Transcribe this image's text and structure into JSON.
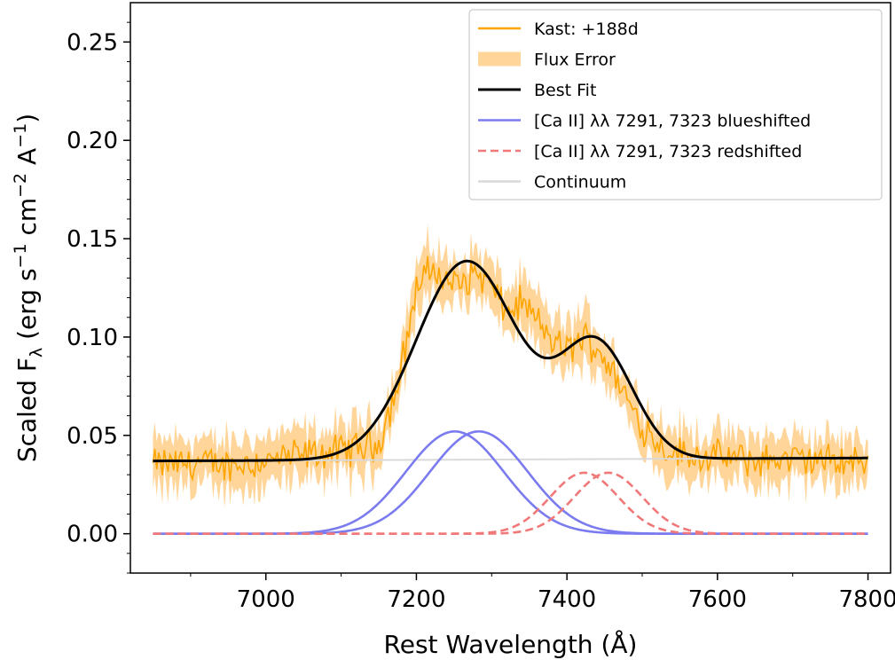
{
  "chart_data": {
    "type": "line",
    "xlabel": "Rest Wavelength (Å)",
    "ylabel_parts": [
      "Scaled F",
      "λ",
      " (erg s",
      "−1",
      " cm",
      "−2",
      " A",
      "−1",
      ")"
    ],
    "xlim": [
      6820,
      7830
    ],
    "ylim": [
      -0.02,
      0.27
    ],
    "xticks": [
      7000,
      7200,
      7400,
      7600,
      7800
    ],
    "xtick_labels": [
      "7000",
      "7200",
      "7400",
      "7600",
      "7800"
    ],
    "yticks": [
      0.0,
      0.05,
      0.1,
      0.15,
      0.2,
      0.25
    ],
    "ytick_labels": [
      "0.00",
      "0.05",
      "0.10",
      "0.15",
      "0.20",
      "0.25"
    ],
    "legend_position": "top-right",
    "legend": [
      {
        "key": "kast",
        "label": "Kast: +188d",
        "style": "line",
        "color": "#FFA500"
      },
      {
        "key": "err",
        "label": "Flux Error",
        "style": "patch",
        "color": "#FFD59A"
      },
      {
        "key": "fit",
        "label": "Best Fit",
        "style": "line",
        "color": "#000000"
      },
      {
        "key": "blue",
        "label": "[Ca II] λλ 7291, 7323 blueshifted",
        "style": "line",
        "color": "#7B7BF0"
      },
      {
        "key": "red",
        "label": "[Ca II] λλ 7291, 7323 redshifted",
        "style": "dashed",
        "color": "#F07878"
      },
      {
        "key": "cont",
        "label": "Continuum",
        "style": "line",
        "color": "#D9D9D9"
      }
    ],
    "data_range": [
      6850,
      7800
    ],
    "components": {
      "continuum": {
        "start": 0.037,
        "end": 0.0385
      },
      "blueshifted_gaussians": [
        {
          "center": 7251,
          "amplitude": 0.052,
          "sigma": 65
        },
        {
          "center": 7283,
          "amplitude": 0.052,
          "sigma": 65
        }
      ],
      "redshifted_gaussians": [
        {
          "center": 7423,
          "amplitude": 0.031,
          "sigma": 45
        },
        {
          "center": 7455,
          "amplitude": 0.031,
          "sigma": 45
        }
      ]
    },
    "observed_spectrum_shape": {
      "x": [
        6850,
        6900,
        6950,
        7000,
        7050,
        7100,
        7150,
        7175,
        7200,
        7220,
        7240,
        7260,
        7280,
        7300,
        7320,
        7340,
        7360,
        7380,
        7400,
        7420,
        7440,
        7460,
        7480,
        7500,
        7530,
        7560,
        7600,
        7650,
        7700,
        7750,
        7800
      ],
      "y": [
        0.035,
        0.036,
        0.035,
        0.037,
        0.04,
        0.042,
        0.046,
        0.075,
        0.125,
        0.135,
        0.128,
        0.127,
        0.133,
        0.125,
        0.112,
        0.118,
        0.108,
        0.098,
        0.093,
        0.1,
        0.095,
        0.083,
        0.068,
        0.055,
        0.043,
        0.04,
        0.039,
        0.037,
        0.038,
        0.037,
        0.036
      ]
    },
    "flux_error_halfwidth": 0.012
  }
}
